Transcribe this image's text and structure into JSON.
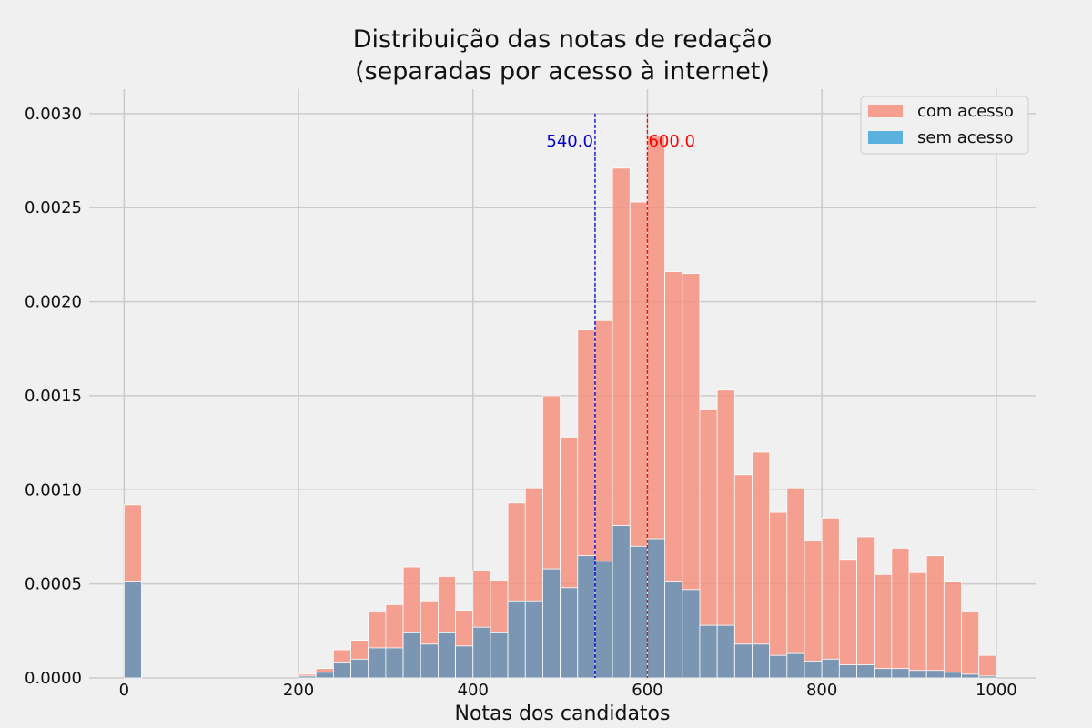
{
  "chart_data": {
    "type": "histogram",
    "title": "Distribuição das notas de redação",
    "subtitle": "(separadas por acesso à internet)",
    "xlabel": "Notas dos candidatos",
    "ylabel": "",
    "xlim": [
      -40,
      1045
    ],
    "ylim": [
      0,
      0.00313
    ],
    "xticks": [
      0,
      200,
      400,
      600,
      800,
      1000
    ],
    "xtick_labels": [
      "0",
      "200",
      "400",
      "600",
      "800",
      "1000"
    ],
    "yticks": [
      0,
      0.0005,
      0.001,
      0.0015,
      0.002,
      0.0025,
      0.003
    ],
    "ytick_labels": [
      "0.0000",
      "0.0005",
      "0.0010",
      "0.0015",
      "0.0020",
      "0.0025",
      "0.0030"
    ],
    "grid": true,
    "legend_position": "top-right",
    "bin_width": 20,
    "bin_starts": [
      0,
      200,
      220,
      240,
      260,
      280,
      300,
      320,
      340,
      360,
      380,
      400,
      420,
      440,
      460,
      480,
      500,
      520,
      540,
      560,
      580,
      600,
      620,
      640,
      660,
      680,
      700,
      720,
      740,
      760,
      780,
      800,
      820,
      840,
      860,
      880,
      900,
      920,
      940,
      960,
      980
    ],
    "series": [
      {
        "name": "com acesso",
        "color": "#f4917f",
        "values": [
          0.00092,
          2e-05,
          5e-05,
          0.00015,
          0.0002,
          0.00035,
          0.00039,
          0.00059,
          0.00041,
          0.00054,
          0.00036,
          0.00057,
          0.00052,
          0.00093,
          0.00101,
          0.0015,
          0.00128,
          0.00185,
          0.0019,
          0.00271,
          0.00253,
          0.00288,
          0.00216,
          0.00215,
          0.00143,
          0.00153,
          0.00108,
          0.0012,
          0.00088,
          0.00101,
          0.00073,
          0.00085,
          0.00063,
          0.00075,
          0.00055,
          0.00069,
          0.00056,
          0.00065,
          0.00051,
          0.00035,
          0.00012
        ]
      },
      {
        "name": "sem acesso",
        "color": "#5ab1de",
        "values": [
          0.00051,
          1e-05,
          3e-05,
          8e-05,
          0.0001,
          0.00016,
          0.00016,
          0.00024,
          0.00018,
          0.00024,
          0.00017,
          0.00027,
          0.00024,
          0.00041,
          0.00041,
          0.00058,
          0.00048,
          0.00065,
          0.00062,
          0.00081,
          0.0007,
          0.00074,
          0.00051,
          0.00047,
          0.00028,
          0.00028,
          0.00018,
          0.00018,
          0.00012,
          0.00013,
          9e-05,
          0.0001,
          7e-05,
          7e-05,
          5e-05,
          5e-05,
          4e-05,
          4e-05,
          3e-05,
          2e-05,
          1e-05
        ]
      }
    ],
    "overlap_color": "#7a96b2",
    "reference_lines": [
      {
        "x": 540.0,
        "label": "540.0",
        "color": "#0000cc",
        "label_side": "left"
      },
      {
        "x": 600.0,
        "label": "600.0",
        "color": "#ff0000",
        "label_side": "right"
      }
    ]
  }
}
